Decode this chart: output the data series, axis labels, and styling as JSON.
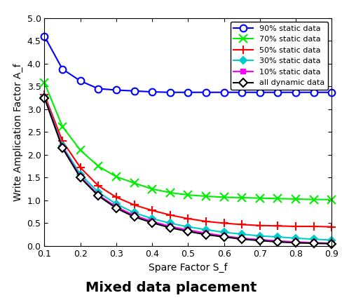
{
  "x": [
    0.1,
    0.15,
    0.2,
    0.25,
    0.3,
    0.35,
    0.4,
    0.45,
    0.5,
    0.55,
    0.6,
    0.65,
    0.7,
    0.75,
    0.8,
    0.85,
    0.9
  ],
  "empirical_data": {
    "90% static data": [
      4.6,
      3.88,
      3.62,
      3.45,
      3.42,
      3.4,
      3.38,
      3.37,
      3.37,
      3.37,
      3.37,
      3.37,
      3.37,
      3.37,
      3.37,
      3.37,
      3.37
    ],
    "70% static data": [
      3.58,
      2.62,
      2.1,
      1.75,
      1.52,
      1.38,
      1.25,
      1.17,
      1.12,
      1.09,
      1.07,
      1.06,
      1.05,
      1.04,
      1.03,
      1.02,
      1.02
    ],
    "50% static data": [
      3.32,
      2.3,
      1.72,
      1.32,
      1.07,
      0.9,
      0.78,
      0.68,
      0.6,
      0.54,
      0.5,
      0.47,
      0.45,
      0.44,
      0.43,
      0.43,
      0.42
    ],
    "30% static data": [
      3.28,
      2.2,
      1.57,
      1.18,
      0.92,
      0.73,
      0.6,
      0.5,
      0.42,
      0.36,
      0.3,
      0.26,
      0.22,
      0.2,
      0.17,
      0.15,
      0.13
    ],
    "10% static data": [
      3.26,
      2.17,
      1.52,
      1.12,
      0.86,
      0.67,
      0.54,
      0.43,
      0.35,
      0.28,
      0.22,
      0.17,
      0.14,
      0.11,
      0.09,
      0.07,
      0.06
    ],
    "all dynamic data": [
      3.25,
      2.15,
      1.5,
      1.1,
      0.83,
      0.64,
      0.51,
      0.4,
      0.32,
      0.25,
      0.2,
      0.15,
      0.12,
      0.09,
      0.07,
      0.06,
      0.05
    ]
  },
  "series_order": [
    "90% static data",
    "70% static data",
    "50% static data",
    "30% static data",
    "10% static data",
    "all dynamic data"
  ],
  "colors": {
    "90% static data": "#0000FF",
    "70% static data": "#00EE00",
    "50% static data": "#FF0000",
    "30% static data": "#00CCCC",
    "10% static data": "#FF00FF",
    "all dynamic data": "#000000"
  },
  "markers": {
    "90% static data": "o",
    "70% static data": "x",
    "50% static data": "+",
    "30% static data": "D",
    "10% static data": "s",
    "all dynamic data": "D"
  },
  "marker_sizes": {
    "90% static data": 7,
    "70% static data": 8,
    "50% static data": 9,
    "30% static data": 5,
    "10% static data": 5,
    "all dynamic data": 6
  },
  "marker_face_colors": {
    "90% static data": "white",
    "70% static data": "#00EE00",
    "50% static data": "#FF0000",
    "30% static data": "#00CCCC",
    "10% static data": "#FF00FF",
    "all dynamic data": "white"
  },
  "xlabel": "Spare Factor S_f",
  "ylabel": "Write Amplication Factor A_f",
  "title": "Mixed data placement",
  "xlim": [
    0.1,
    0.9
  ],
  "ylim": [
    0,
    5
  ],
  "xticks": [
    0.1,
    0.2,
    0.3,
    0.4,
    0.5,
    0.6,
    0.7,
    0.8,
    0.9
  ],
  "yticks": [
    0,
    0.5,
    1.0,
    1.5,
    2.0,
    2.5,
    3.0,
    3.5,
    4.0,
    4.5,
    5.0
  ],
  "figsize": [
    4.88,
    4.28
  ],
  "dpi": 100,
  "linewidth": 1.5,
  "legend_fontsize": 8,
  "xlabel_fontsize": 10,
  "ylabel_fontsize": 10,
  "title_fontsize": 14
}
